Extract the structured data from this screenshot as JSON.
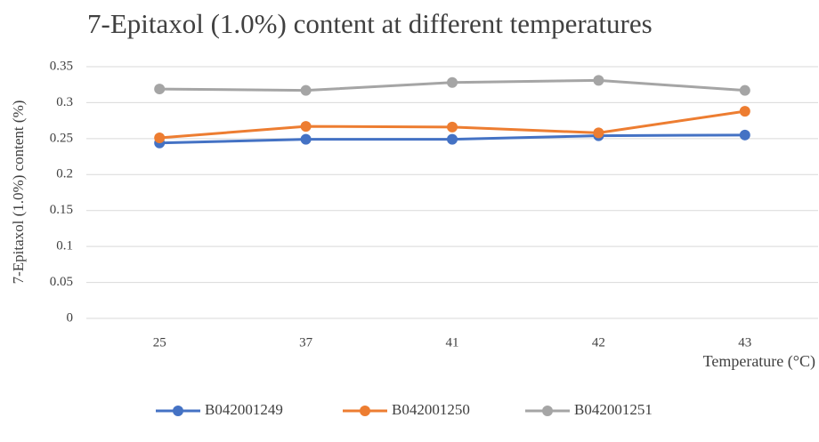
{
  "chart_data": {
    "type": "line",
    "title": "7-Epitaxol  (1.0%) content at different temperatures",
    "x_label": "Temperature (°C)",
    "y_label": "7-Epitaxol  (1.0%) content (%)",
    "categories": [
      "25",
      "37",
      "41",
      "42",
      "43"
    ],
    "series": [
      {
        "name": "B042001249",
        "color": "#4472c4",
        "values": [
          0.244,
          0.249,
          0.249,
          0.254,
          0.255
        ]
      },
      {
        "name": "B042001250",
        "color": "#ed7d31",
        "values": [
          0.251,
          0.267,
          0.266,
          0.258,
          0.288
        ]
      },
      {
        "name": "B042001251",
        "color": "#a5a5a5",
        "values": [
          0.319,
          0.317,
          0.328,
          0.331,
          0.317
        ]
      }
    ],
    "ylim": [
      0,
      0.35
    ],
    "yticks": [
      0,
      0.05,
      0.1,
      0.15,
      0.2,
      0.25,
      0.3,
      0.35
    ],
    "grid": true,
    "legend": "bottom"
  }
}
